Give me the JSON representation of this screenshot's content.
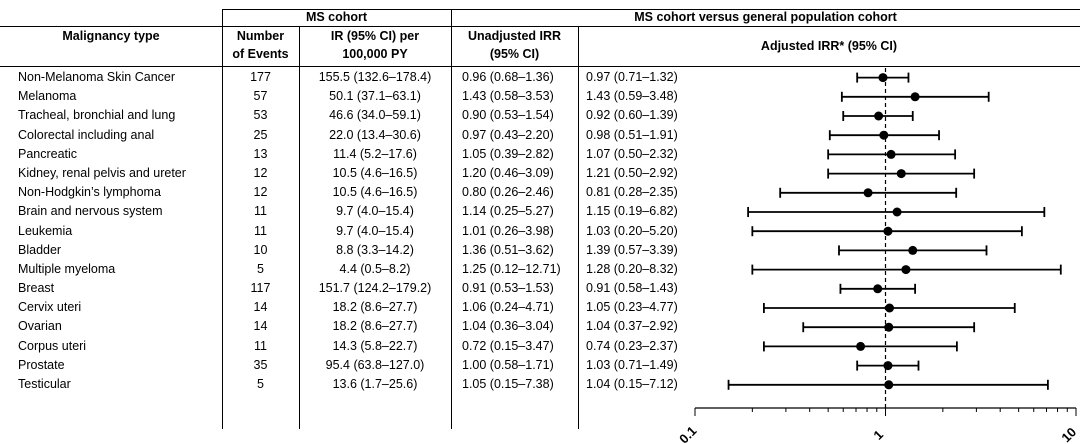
{
  "headers": {
    "group_ms": "MS cohort",
    "group_compare": "MS cohort versus general population cohort",
    "col_type": "Malignancy type",
    "col_events": [
      "Number",
      "of Events"
    ],
    "col_ir": [
      "IR (95% CI) per",
      "100,000 PY"
    ],
    "col_unadj": [
      "Unadjusted IRR",
      "(95% CI)"
    ],
    "col_adj": "Adjusted IRR* (95% CI)"
  },
  "chart_data": {
    "type": "forest",
    "x_scale": "log",
    "xlim": [
      0.1,
      10
    ],
    "x_ticks": [
      "0.1",
      "1",
      "10"
    ],
    "reference_line": 1,
    "rows": [
      {
        "type": "Non-Melanoma Skin Cancer",
        "events": "177",
        "ir": "155.5 (132.6–178.4)",
        "unadj": "0.96 (0.68–1.36)",
        "adj": "0.97 (0.71–1.32)",
        "est": 0.97,
        "lo": 0.71,
        "hi": 1.32
      },
      {
        "type": "Melanoma",
        "events": "57",
        "ir": "50.1 (37.1–63.1)",
        "unadj": "1.43 (0.58–3.53)",
        "adj": "1.43 (0.59–3.48)",
        "est": 1.43,
        "lo": 0.59,
        "hi": 3.48
      },
      {
        "type": "Tracheal, bronchial and lung",
        "events": "53",
        "ir": "46.6 (34.0–59.1)",
        "unadj": "0.90 (0.53–1.54)",
        "adj": "0.92 (0.60–1.39)",
        "est": 0.92,
        "lo": 0.6,
        "hi": 1.39
      },
      {
        "type": "Colorectal including anal",
        "events": "25",
        "ir": "22.0 (13.4–30.6)",
        "unadj": "0.97 (0.43–2.20)",
        "adj": "0.98 (0.51–1.91)",
        "est": 0.98,
        "lo": 0.51,
        "hi": 1.91
      },
      {
        "type": "Pancreatic",
        "events": "13",
        "ir": "11.4 (5.2–17.6)",
        "unadj": "1.05 (0.39–2.82)",
        "adj": "1.07 (0.50–2.32)",
        "est": 1.07,
        "lo": 0.5,
        "hi": 2.32
      },
      {
        "type": "Kidney, renal pelvis and ureter",
        "events": "12",
        "ir": "10.5 (4.6–16.5)",
        "unadj": "1.20 (0.46–3.09)",
        "adj": "1.21 (0.50–2.92)",
        "est": 1.21,
        "lo": 0.5,
        "hi": 2.92
      },
      {
        "type": "Non-Hodgkin’s lymphoma",
        "events": "12",
        "ir": "10.5 (4.6–16.5)",
        "unadj": "0.80 (0.26–2.46)",
        "adj": "0.81 (0.28–2.35)",
        "est": 0.81,
        "lo": 0.28,
        "hi": 2.35
      },
      {
        "type": "Brain and nervous system",
        "events": "11",
        "ir": "9.7 (4.0–15.4)",
        "unadj": "1.14 (0.25–5.27)",
        "adj": "1.15 (0.19–6.82)",
        "est": 1.15,
        "lo": 0.19,
        "hi": 6.82
      },
      {
        "type": "Leukemia",
        "events": "11",
        "ir": "9.7 (4.0–15.4)",
        "unadj": "1.01 (0.26–3.98)",
        "adj": "1.03 (0.20–5.20)",
        "est": 1.03,
        "lo": 0.2,
        "hi": 5.2
      },
      {
        "type": "Bladder",
        "events": "10",
        "ir": "8.8 (3.3–14.2)",
        "unadj": "1.36 (0.51–3.62)",
        "adj": "1.39 (0.57–3.39)",
        "est": 1.39,
        "lo": 0.57,
        "hi": 3.39
      },
      {
        "type": "Multiple myeloma",
        "events": "5",
        "ir": "4.4 (0.5–8.2)",
        "unadj": "1.25 (0.12–12.71)",
        "adj": "1.28 (0.20–8.32)",
        "est": 1.28,
        "lo": 0.2,
        "hi": 8.32
      },
      {
        "type": "Breast",
        "events": "117",
        "ir": "151.7 (124.2–179.2)",
        "unadj": "0.91 (0.53–1.53)",
        "adj": "0.91 (0.58–1.43)",
        "est": 0.91,
        "lo": 0.58,
        "hi": 1.43
      },
      {
        "type": "Cervix uteri",
        "events": "14",
        "ir": "18.2 (8.6–27.7)",
        "unadj": "1.06 (0.24–4.71)",
        "adj": "1.05 (0.23–4.77)",
        "est": 1.05,
        "lo": 0.23,
        "hi": 4.77
      },
      {
        "type": "Ovarian",
        "events": "14",
        "ir": "18.2 (8.6–27.7)",
        "unadj": "1.04 (0.36–3.04)",
        "adj": "1.04 (0.37–2.92)",
        "est": 1.04,
        "lo": 0.37,
        "hi": 2.92
      },
      {
        "type": "Corpus uteri",
        "events": "11",
        "ir": "14.3 (5.8–22.7)",
        "unadj": "0.72 (0.15–3.47)",
        "adj": "0.74 (0.23–2.37)",
        "est": 0.74,
        "lo": 0.23,
        "hi": 2.37
      },
      {
        "type": "Prostate",
        "events": "35",
        "ir": "95.4 (63.8–127.0)",
        "unadj": "1.00 (0.58–1.71)",
        "adj": "1.03 (0.71–1.49)",
        "est": 1.03,
        "lo": 0.71,
        "hi": 1.49
      },
      {
        "type": "Testicular",
        "events": "5",
        "ir": "13.6 (1.7–25.6)",
        "unadj": "1.05 (0.15–7.38)",
        "adj": "1.04 (0.15–7.12)",
        "est": 1.04,
        "lo": 0.15,
        "hi": 7.12
      }
    ]
  }
}
